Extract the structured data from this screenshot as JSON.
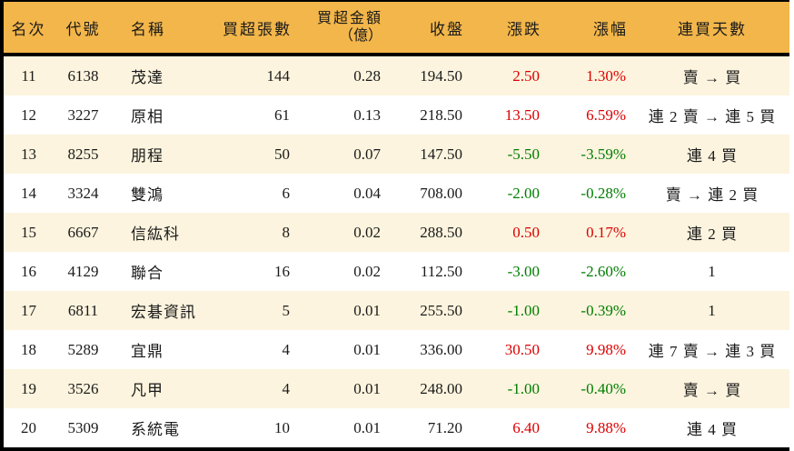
{
  "chart_data": {
    "type": "table",
    "description": "券商買超排行 11-20 名（Taiwan stock net-buy ranking table）",
    "columns": [
      {
        "key": "rank",
        "label": "名次"
      },
      {
        "key": "code",
        "label": "代號"
      },
      {
        "key": "name",
        "label": "名稱"
      },
      {
        "key": "net_buy_volume",
        "label": "買超張數"
      },
      {
        "key": "net_buy_amount",
        "label": "買超金額",
        "label2": "（億）"
      },
      {
        "key": "close",
        "label": "收盤"
      },
      {
        "key": "change",
        "label": "漲跌"
      },
      {
        "key": "change_pct",
        "label": "漲幅"
      },
      {
        "key": "streak",
        "label": "連買天數"
      }
    ],
    "rows": [
      {
        "rank": "11",
        "code": "6138",
        "name": "茂達",
        "net_buy_volume": "144",
        "net_buy_amount": "0.28",
        "close": "194.50",
        "change": "2.50",
        "change_pct": "1.30%",
        "trend": "up",
        "streak": "賣 → 買"
      },
      {
        "rank": "12",
        "code": "3227",
        "name": "原相",
        "net_buy_volume": "61",
        "net_buy_amount": "0.13",
        "close": "218.50",
        "change": "13.50",
        "change_pct": "6.59%",
        "trend": "up",
        "streak": "連 2 賣 → 連 5 買"
      },
      {
        "rank": "13",
        "code": "8255",
        "name": "朋程",
        "net_buy_volume": "50",
        "net_buy_amount": "0.07",
        "close": "147.50",
        "change": "-5.50",
        "change_pct": "-3.59%",
        "trend": "down",
        "streak": "連 4 買"
      },
      {
        "rank": "14",
        "code": "3324",
        "name": "雙鴻",
        "net_buy_volume": "6",
        "net_buy_amount": "0.04",
        "close": "708.00",
        "change": "-2.00",
        "change_pct": "-0.28%",
        "trend": "down",
        "streak": "賣 → 連 2 買"
      },
      {
        "rank": "15",
        "code": "6667",
        "name": "信紘科",
        "net_buy_volume": "8",
        "net_buy_amount": "0.02",
        "close": "288.50",
        "change": "0.50",
        "change_pct": "0.17%",
        "trend": "up",
        "streak": "連 2 買"
      },
      {
        "rank": "16",
        "code": "4129",
        "name": "聯合",
        "net_buy_volume": "16",
        "net_buy_amount": "0.02",
        "close": "112.50",
        "change": "-3.00",
        "change_pct": "-2.60%",
        "trend": "down",
        "streak": "1"
      },
      {
        "rank": "17",
        "code": "6811",
        "name": "宏碁資訊",
        "net_buy_volume": "5",
        "net_buy_amount": "0.01",
        "close": "255.50",
        "change": "-1.00",
        "change_pct": "-0.39%",
        "trend": "down",
        "streak": "1"
      },
      {
        "rank": "18",
        "code": "5289",
        "name": "宜鼎",
        "net_buy_volume": "4",
        "net_buy_amount": "0.01",
        "close": "336.00",
        "change": "30.50",
        "change_pct": "9.98%",
        "trend": "up",
        "streak": "連 7 賣 → 連 3 買"
      },
      {
        "rank": "19",
        "code": "3526",
        "name": "凡甲",
        "net_buy_volume": "4",
        "net_buy_amount": "0.01",
        "close": "248.00",
        "change": "-1.00",
        "change_pct": "-0.40%",
        "trend": "down",
        "streak": "賣 → 買"
      },
      {
        "rank": "20",
        "code": "5309",
        "name": "系統電",
        "net_buy_volume": "10",
        "net_buy_amount": "0.01",
        "close": "71.20",
        "change": "6.40",
        "change_pct": "9.88%",
        "trend": "up",
        "streak": "連 4 買"
      }
    ]
  },
  "colors": {
    "header_bg": "#f3b64a",
    "row_alt_bg": "#fcf4de",
    "row_bg": "#ffffff",
    "up_text": "#dd0000",
    "down_text": "#007d00",
    "border": "#000000",
    "text": "#1a1a1a"
  }
}
